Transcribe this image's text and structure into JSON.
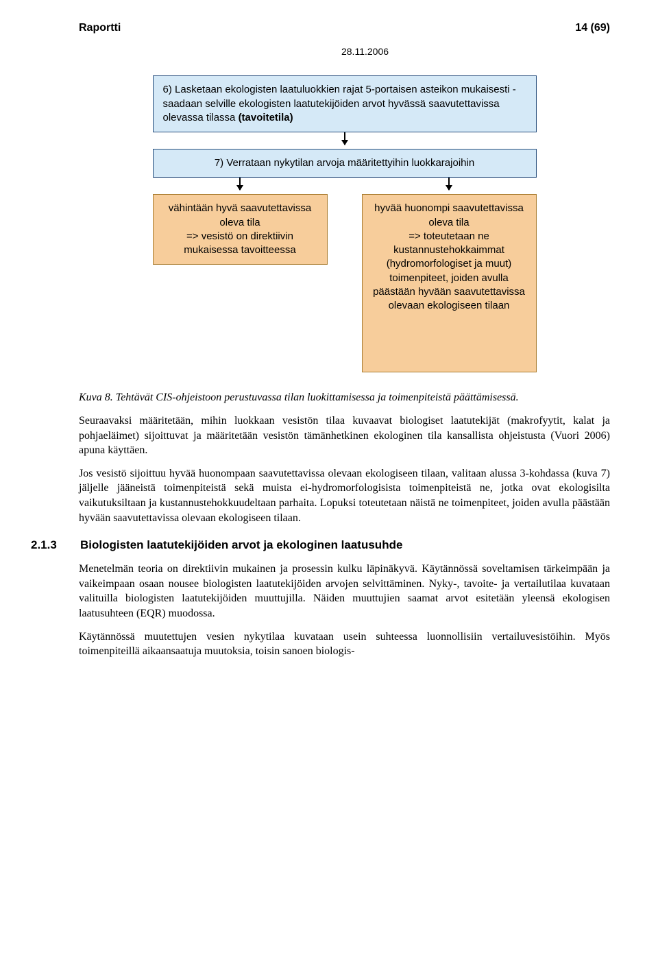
{
  "header": {
    "doc_type": "Raportti",
    "page_info": "14 (69)",
    "date": "28.11.2006"
  },
  "diagram": {
    "step6_text": "6) Lasketaan ekologisten laatuluokkien rajat 5-portaisen asteikon mukaisesti - saadaan selville ekologisten laatutekijöiden arvot hyvässä saavutettavissa olevassa tilassa (tavoitetila)",
    "step7_text": "7) Verrataan nykytilan arvoja määritettyihin luokkarajoihin",
    "left_box": "vähintään hyvä saavutettavissa oleva tila\n=> vesistö on direktiivin mukaisessa tavoitteessa",
    "right_box": "hyvää huonompi saavutettavissa oleva tila\n=> toteutetaan ne kustannustehokkaimmat (hydromorfologiset ja muut) toimenpiteet, joiden avulla päästään hyvään saavutettavissa olevaan ekologiseen tilaan",
    "colors": {
      "blue_fill": "#d5e9f7",
      "blue_border": "#234a7a",
      "orange_fill": "#f7cd9b",
      "orange_border": "#a97c2f"
    }
  },
  "caption": "Kuva 8. Tehtävät CIS-ohjeistoon perustuvassa tilan luokittamisessa ja toimenpiteistä päättämisessä.",
  "para1": "Seuraavaksi määritetään, mihin luokkaan vesistön tilaa kuvaavat biologiset laatutekijät (makrofyytit, kalat ja pohjaeläimet) sijoittuvat ja määritetään vesistön tämänhetkinen ekologinen tila kansallista ohjeistusta (Vuori 2006) apuna käyttäen.",
  "para2": "Jos vesistö sijoittuu hyvää huonompaan saavutettavissa olevaan ekologiseen tilaan, valitaan alussa 3-kohdassa (kuva 7) jäljelle jääneistä toimenpiteistä sekä muista ei-hydromorfologisista toimenpiteistä ne, jotka ovat ekologisilta vaikutuksiltaan ja kustannustehokkuudeltaan parhaita. Lopuksi toteutetaan näistä ne toimenpiteet, joiden avulla päästään hyvään saavutettavissa olevaan ekologiseen tilaan.",
  "section": {
    "num": "2.1.3",
    "title": "Biologisten laatutekijöiden arvot ja ekologinen laatusuhde"
  },
  "para3": "Menetelmän teoria on direktiivin mukainen ja prosessin kulku läpinäkyvä. Käytännössä soveltamisen tärkeimpään ja vaikeimpaan osaan nousee biologisten laatutekijöiden arvojen selvittäminen. Nyky-, tavoite- ja vertailutilaa kuvataan valituilla biologisten laatutekijöiden muuttujilla. Näiden muuttujien saamat arvot esitetään yleensä ekologisen laatusuhteen (EQR) muodossa.",
  "para4": "Käytännössä muutettujen vesien nykytilaa kuvataan usein suhteessa luonnollisiin vertailuvesistöihin. Myös toimenpiteillä aikaansaatuja muutoksia, toisin sanoen biologis-"
}
